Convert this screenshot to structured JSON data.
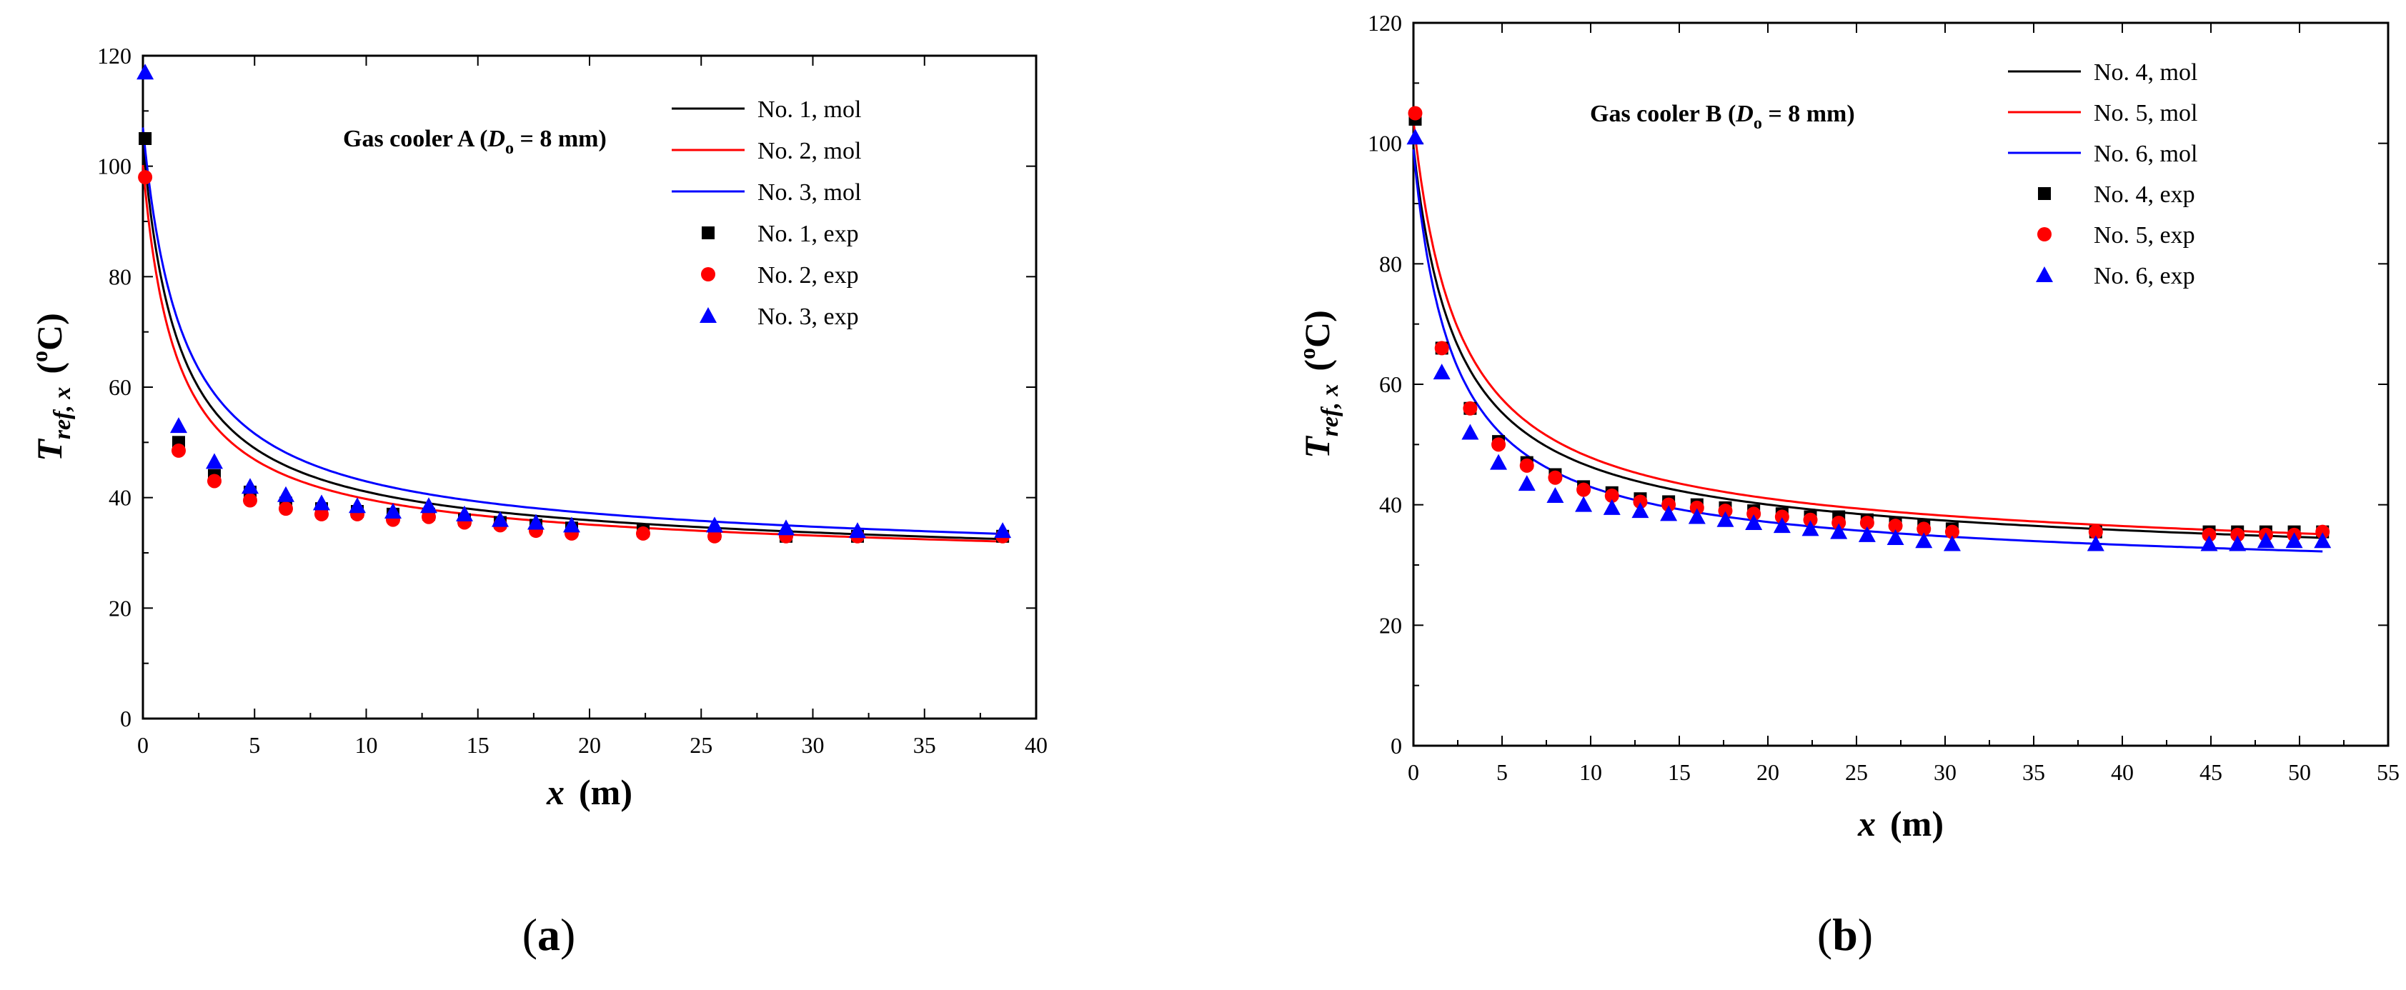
{
  "chart_data": [
    {
      "panel": "a",
      "type": "line",
      "title_prefix": "Gas cooler A (",
      "title_var": "D",
      "title_sub": "o",
      "title_suffix": " = 8 mm)",
      "xlabel": "x",
      "xlabel_unit": "(m)",
      "ylabel_base": "T",
      "ylabel_sub": "ref, x",
      "ylabel_unit_open": "(",
      "ylabel_sup": "o",
      "ylabel_unit_close": "C)",
      "xlim": [
        0,
        40
      ],
      "ylim": [
        0,
        120
      ],
      "xticks": [
        0,
        5,
        10,
        15,
        20,
        25,
        30,
        35,
        40
      ],
      "yticks": [
        0,
        20,
        40,
        60,
        80,
        100,
        120
      ],
      "series": [
        {
          "name": "No. 1, mol",
          "kind": "line",
          "color": "#000000",
          "A": 73,
          "B": 1.6,
          "C": 31.5,
          "D": -0.05,
          "xmax": 38.5
        },
        {
          "name": "No. 2, mol",
          "kind": "line",
          "color": "#ff0000",
          "A": 69,
          "B": 1.5,
          "C": 31.2,
          "D": -0.045,
          "xmax": 38.5
        },
        {
          "name": "No. 3, mol",
          "kind": "line",
          "color": "#0000ff",
          "A": 75,
          "B": 1.8,
          "C": 32.0,
          "D": -0.05,
          "xmax": 38.5
        },
        {
          "name": "No. 1, exp",
          "kind": "marker",
          "marker": "square",
          "color": "#000000",
          "x": [
            0.1,
            1.6,
            3.2,
            4.8,
            6.4,
            8.0,
            9.6,
            11.2,
            12.8,
            14.4,
            16.0,
            17.6,
            19.2,
            22.4,
            25.6,
            28.8,
            32.0,
            38.5
          ],
          "y": [
            105,
            50,
            44,
            41,
            39,
            38,
            37.5,
            37,
            37,
            36,
            35.5,
            35,
            34.5,
            34,
            33.5,
            33,
            33,
            33
          ]
        },
        {
          "name": "No. 2, exp",
          "kind": "marker",
          "marker": "circle",
          "color": "#ff0000",
          "x": [
            0.1,
            1.6,
            3.2,
            4.8,
            6.4,
            8.0,
            9.6,
            11.2,
            12.8,
            14.4,
            16.0,
            17.6,
            19.2,
            22.4,
            25.6,
            28.8,
            32.0,
            38.5
          ],
          "y": [
            98,
            48.5,
            43,
            39.5,
            38,
            37,
            37,
            36,
            36.5,
            35.5,
            35,
            34,
            33.5,
            33.5,
            33,
            33,
            33,
            33
          ]
        },
        {
          "name": "No. 3, exp",
          "kind": "marker",
          "marker": "triangle",
          "color": "#0000ff",
          "x": [
            0.1,
            1.6,
            3.2,
            4.8,
            6.4,
            8.0,
            9.6,
            11.2,
            12.8,
            14.4,
            16.0,
            17.6,
            19.2,
            25.6,
            28.8,
            32.0,
            38.5
          ],
          "y": [
            117,
            53,
            46.5,
            42,
            40.5,
            39,
            38.5,
            37.5,
            38.5,
            37,
            36,
            35.5,
            35,
            35,
            34.5,
            34,
            34
          ]
        }
      ],
      "legend_position": "top-right"
    },
    {
      "panel": "b",
      "type": "line",
      "title_prefix": "Gas cooler B (",
      "title_var": "D",
      "title_sub": "o",
      "title_suffix": " = 8 mm)",
      "xlabel": "x",
      "xlabel_unit": "(m)",
      "ylabel_base": "T",
      "ylabel_sub": "ref, x",
      "ylabel_unit_open": "(",
      "ylabel_sup": "o",
      "ylabel_unit_close": "C)",
      "xlim": [
        0,
        55
      ],
      "ylim": [
        0,
        120
      ],
      "xticks": [
        0,
        5,
        10,
        15,
        20,
        25,
        30,
        35,
        40,
        45,
        50,
        55
      ],
      "yticks": [
        0,
        20,
        40,
        60,
        80,
        100,
        120
      ],
      "series": [
        {
          "name": "No. 4, mol",
          "kind": "line",
          "color": "#000000",
          "A": 66,
          "B": 2.5,
          "C": 33.5,
          "D": -0.04,
          "xmax": 51.3
        },
        {
          "name": "No. 5, mol",
          "kind": "line",
          "color": "#ff0000",
          "A": 70,
          "B": 2.6,
          "C": 33.8,
          "D": -0.04,
          "xmax": 51.3
        },
        {
          "name": "No. 6, mol",
          "kind": "line",
          "color": "#0000ff",
          "A": 68,
          "B": 2.2,
          "C": 31.0,
          "D": -0.03,
          "xmax": 51.3
        },
        {
          "name": "No. 4, exp",
          "kind": "marker",
          "marker": "square",
          "color": "#000000",
          "x": [
            0.1,
            1.6,
            3.2,
            4.8,
            6.4,
            8.0,
            9.6,
            11.2,
            12.8,
            14.4,
            16.0,
            17.6,
            19.2,
            20.8,
            22.4,
            24.0,
            25.6,
            27.2,
            28.8,
            30.4,
            38.5,
            44.9,
            46.5,
            48.1,
            49.7,
            51.3
          ],
          "y": [
            104,
            66,
            56,
            50.5,
            47,
            45,
            43,
            42,
            41,
            40.5,
            40,
            39.5,
            39,
            38.5,
            38,
            38,
            37.5,
            37,
            36.5,
            36,
            35.5,
            35.5,
            35.5,
            35.5,
            35.5,
            35.5
          ]
        },
        {
          "name": "No. 5, exp",
          "kind": "marker",
          "marker": "circle",
          "color": "#ff0000",
          "x": [
            0.1,
            1.6,
            3.2,
            4.8,
            6.4,
            8.0,
            9.6,
            11.2,
            12.8,
            14.4,
            16.0,
            17.6,
            19.2,
            20.8,
            22.4,
            24.0,
            25.6,
            27.2,
            28.8,
            30.4,
            38.5,
            44.9,
            46.5,
            48.1,
            49.7,
            51.3
          ],
          "y": [
            105,
            66,
            56,
            50,
            46.5,
            44.5,
            42.5,
            41.5,
            40.5,
            40,
            39.5,
            39,
            38.5,
            38,
            37.5,
            37,
            37,
            36.5,
            36,
            35.5,
            35.5,
            35,
            35,
            35,
            35,
            35.5
          ]
        },
        {
          "name": "No. 6, exp",
          "kind": "marker",
          "marker": "triangle",
          "color": "#0000ff",
          "x": [
            0.1,
            1.6,
            3.2,
            4.8,
            6.4,
            8.0,
            9.6,
            11.2,
            12.8,
            14.4,
            16.0,
            17.6,
            19.2,
            20.8,
            22.4,
            24.0,
            25.6,
            27.2,
            28.8,
            30.4,
            38.5,
            44.9,
            46.5,
            48.1,
            49.7,
            51.3
          ],
          "y": [
            101,
            62,
            52,
            47,
            43.5,
            41.5,
            40,
            39.5,
            39,
            38.5,
            38,
            37.5,
            37,
            36.5,
            36,
            35.5,
            35,
            34.5,
            34,
            33.5,
            33.5,
            33.5,
            33.5,
            34,
            34,
            34
          ]
        }
      ],
      "legend_position": "top-right"
    }
  ],
  "panel_labels": {
    "a_open": "(",
    "a_letter": "a",
    "a_close": ")",
    "b_open": "(",
    "b_letter": "b",
    "b_close": ")"
  }
}
